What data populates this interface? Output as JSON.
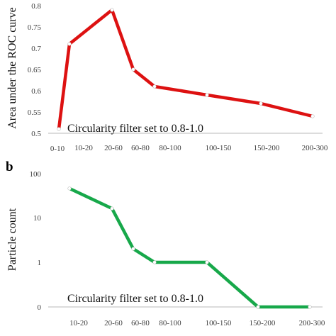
{
  "figure": {
    "panel_b_label": "b"
  },
  "chart_data": [
    {
      "type": "line",
      "ylabel": "Area under the ROC curve",
      "annotation": "Circularity filter set to 0.8-1.0",
      "categories": [
        "0-10",
        "10-20",
        "20-60",
        "60-80",
        "80-100",
        "100-150",
        "150-200",
        "200-300"
      ],
      "values": [
        0.51,
        0.71,
        0.79,
        0.65,
        0.61,
        0.59,
        0.57,
        0.54
      ],
      "yticks": [
        "0.5",
        "0.55",
        "0.6",
        "0.65",
        "0.7",
        "0.75",
        "0.8"
      ],
      "ylim": [
        0.5,
        0.8
      ],
      "color": "#dd1111"
    },
    {
      "type": "line",
      "ylabel": "Particle count",
      "annotation": "Circularity filter set to 0.8-1.0",
      "y_scale": "log",
      "categories": [
        "10-20",
        "20-60",
        "60-80",
        "80-100",
        "100-150",
        "150-200",
        "200-300"
      ],
      "values": [
        45,
        16,
        2,
        1,
        1,
        0,
        0
      ],
      "yticks": [
        "100",
        "10",
        "1",
        "0"
      ],
      "color": "#17a84a"
    }
  ]
}
